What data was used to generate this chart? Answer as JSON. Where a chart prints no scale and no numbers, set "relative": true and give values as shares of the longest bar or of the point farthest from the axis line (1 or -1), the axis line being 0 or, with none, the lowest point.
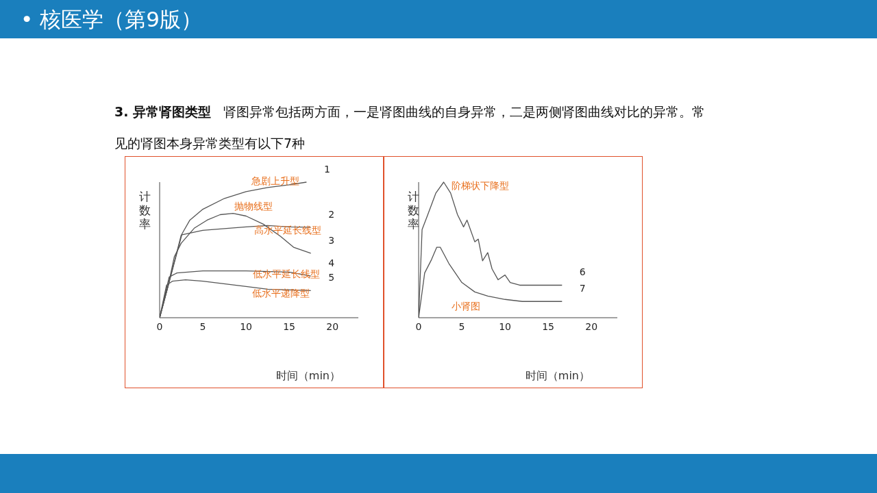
{
  "chart_data": [
    {
      "type": "line",
      "relative": true,
      "xlabel": "时间（min）",
      "ylabel": "计数率",
      "xlim": [
        0,
        23
      ],
      "xticks": [
        0,
        5,
        10,
        15,
        20
      ],
      "marker": "none",
      "line_style": "solid",
      "annotations": [
        "• 核医学（第9版）",
        "3. 异常肾图类型",
        "肾图异常包括两方面，一是肾图曲线的自身异常，二是两侧肾图曲线对比的异常。常见的肾图本身异常类型有以下7种",
        {
          "text": "急剧上升型",
          "x": 13.4,
          "y": 0.967
        },
        {
          "text": "抛物线型",
          "x": 8.5,
          "y": 0.77
        },
        {
          "text": "高水平延长线型",
          "x": 14.8,
          "y": 0.671
        },
        {
          "text": "低水平延长线型",
          "x": 14.7,
          "y": 0.338
        },
        {
          "text": "低水平递降型",
          "x": 14,
          "y": 0.207
        }
      ],
      "series": [
        {
          "name": "1",
          "color": "#555555",
          "x": [
            0,
            1,
            2.6,
            3.5,
            5,
            7.5,
            10,
            12.5,
            15,
            17
          ],
          "values": [
            0,
            0.24,
            0.62,
            0.72,
            0.8,
            0.88,
            0.93,
            0.96,
            0.98,
            1
          ]
        },
        {
          "name": "2",
          "color": "#555555",
          "x": [
            0,
            1,
            2.5,
            5,
            10,
            12.5,
            15,
            17.5
          ],
          "values": [
            0,
            0.24,
            0.61,
            0.645,
            0.67,
            0.68,
            0.67,
            0.667
          ]
        },
        {
          "name": "3",
          "color": "#555555",
          "x": [
            0,
            1,
            1.7,
            2.5,
            4,
            5.5,
            7,
            8.5,
            10,
            12,
            14,
            15.5,
            17.5
          ],
          "values": [
            0,
            0.24,
            0.45,
            0.55,
            0.66,
            0.72,
            0.76,
            0.77,
            0.75,
            0.69,
            0.6,
            0.52,
            0.475
          ]
        },
        {
          "name": "4",
          "color": "#555555",
          "x": [
            0,
            1.1,
            2,
            5,
            10,
            15,
            17.5
          ],
          "values": [
            0,
            0.3,
            0.33,
            0.345,
            0.345,
            0.336,
            0.307
          ]
        },
        {
          "name": "5",
          "color": "#555555",
          "x": [
            0,
            0.8,
            1.5,
            3,
            5,
            10,
            12.5,
            17.5
          ],
          "values": [
            0,
            0.24,
            0.27,
            0.28,
            0.27,
            0.23,
            0.21,
            0.2
          ]
        }
      ]
    },
    {
      "type": "line",
      "relative": true,
      "xlabel": "时间（min）",
      "ylabel": "计数率",
      "xlim": [
        0,
        23
      ],
      "xticks": [
        0,
        5,
        10,
        15,
        20
      ],
      "marker": "none",
      "line_style": "solid",
      "annotations": [
        {
          "text": "阶梯状下降型",
          "x": 2.9,
          "y": 1
        },
        {
          "text": "小肾图",
          "x": 5.5,
          "y": 0.237
        }
      ],
      "series": [
        {
          "name": "6",
          "color": "#555555",
          "x": [
            0,
            0.4,
            1,
            2,
            2.9,
            3.7,
            4.5,
            5.2,
            5.6,
            6.5,
            6.9,
            7.4,
            8,
            8.5,
            9.2,
            10,
            10.6,
            11.7,
            16.6
          ],
          "values": [
            0,
            0.65,
            0.75,
            0.92,
            1,
            0.92,
            0.76,
            0.67,
            0.72,
            0.56,
            0.58,
            0.42,
            0.48,
            0.36,
            0.28,
            0.315,
            0.26,
            0.24,
            0.24
          ]
        },
        {
          "name": "7",
          "color": "#555555",
          "x": [
            0,
            0.7,
            1.5,
            2.1,
            2.5,
            3.5,
            5,
            6.5,
            8,
            10,
            12,
            16.6
          ],
          "values": [
            0,
            0.33,
            0.43,
            0.52,
            0.52,
            0.4,
            0.26,
            0.19,
            0.16,
            0.135,
            0.12,
            0.12
          ]
        }
      ]
    }
  ]
}
